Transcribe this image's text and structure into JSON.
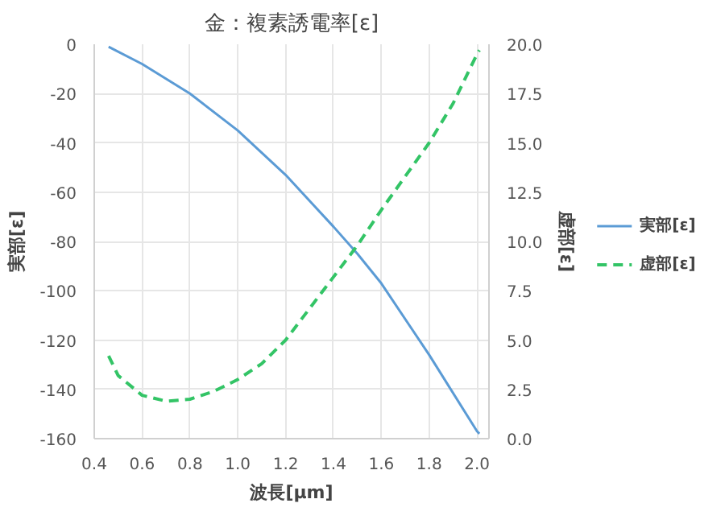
{
  "chart_data": {
    "type": "line",
    "title": "金：複素誘電率[ε]",
    "xlabel": "波長[μm]",
    "ylabel": "実部[ε]",
    "y2label": "虚部[ε]",
    "xlim": [
      0.4,
      2.05
    ],
    "xticks": [
      {
        "value": 0.4,
        "label": "0.4"
      },
      {
        "value": 0.6,
        "label": "0.6"
      },
      {
        "value": 0.8,
        "label": "0.8"
      },
      {
        "value": 1.0,
        "label": "1.0"
      },
      {
        "value": 1.2,
        "label": "1.2"
      },
      {
        "value": 1.4,
        "label": "1.4"
      },
      {
        "value": 1.6,
        "label": "1.6"
      },
      {
        "value": 1.8,
        "label": "1.8"
      },
      {
        "value": 2.0,
        "label": "2.0"
      }
    ],
    "ylim": [
      -160,
      0
    ],
    "yticks": [
      -160,
      -140,
      -120,
      -100,
      -80,
      -60,
      -40,
      -20,
      0
    ],
    "y2lim": [
      0,
      20
    ],
    "y2ticks": [
      {
        "value": 0,
        "label": "0.0"
      },
      {
        "value": 2.5,
        "label": "2.5"
      },
      {
        "value": 5,
        "label": "5.0"
      },
      {
        "value": 7.5,
        "label": "7.5"
      },
      {
        "value": 10,
        "label": "10.0"
      },
      {
        "value": 12.5,
        "label": "12.5"
      },
      {
        "value": 15,
        "label": "15.0"
      },
      {
        "value": 17.5,
        "label": "17.5"
      },
      {
        "value": 20,
        "label": "20.0"
      }
    ],
    "grid": true,
    "legend": "right",
    "marker": "none",
    "series": [
      {
        "name": "実部[ε]",
        "color": "#5b9bd5",
        "line_style": "solid",
        "x": [
          0.46,
          0.6,
          0.8,
          1.0,
          1.2,
          1.4,
          1.5,
          1.6,
          1.8,
          2.0,
          2.01
        ],
        "values": [
          -1,
          -8,
          -20,
          -35,
          -53,
          -74,
          -85,
          -97,
          -126,
          -157,
          -158
        ]
      },
      {
        "name": "虚部[ε]",
        "color": "#33c466",
        "line_style": "dashed",
        "axis": "y2",
        "x": [
          0.46,
          0.5,
          0.6,
          0.7,
          0.8,
          0.9,
          1.0,
          1.1,
          1.2,
          1.3,
          1.4,
          1.5,
          1.6,
          1.7,
          1.8,
          1.9,
          2.0,
          2.01
        ],
        "values": [
          4.2,
          3.2,
          2.2,
          1.9,
          2.0,
          2.4,
          3.0,
          3.8,
          5.0,
          6.6,
          8.2,
          9.8,
          11.6,
          13.3,
          15.0,
          17.0,
          19.5,
          19.7
        ]
      }
    ]
  }
}
